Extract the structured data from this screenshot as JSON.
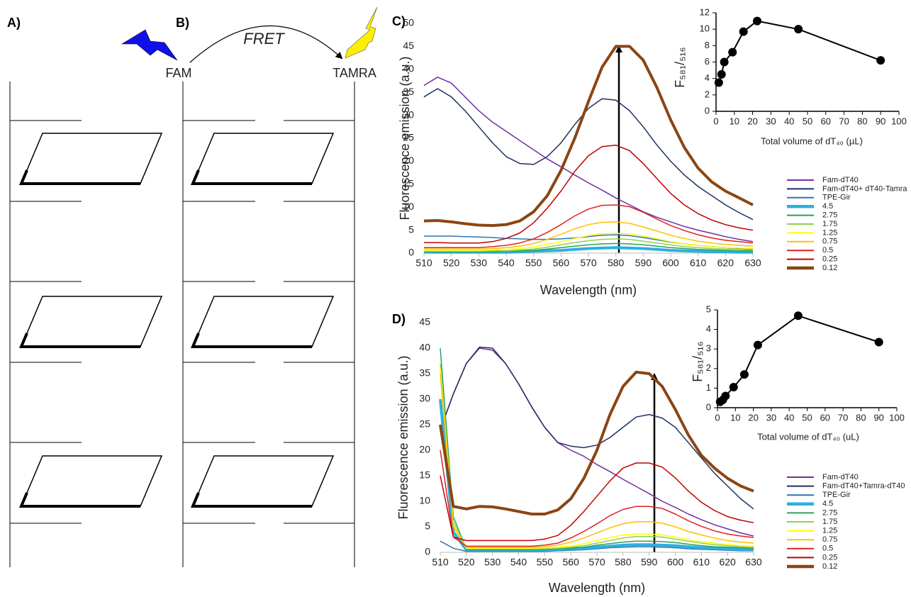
{
  "figure": {
    "panel_a": "A)",
    "panel_b": "B)",
    "panel_c": "C)",
    "panel_d": "D)",
    "fret": "FRET",
    "donor": "FAM",
    "acceptor": "TAMRA"
  },
  "chart_data": [
    {
      "type": "line",
      "xlabel": "Wavelength (nm)",
      "ylabel": "Fluorescence emission (a.u.)",
      "xlim": [
        510,
        630
      ],
      "xticks": [
        510,
        520,
        530,
        540,
        550,
        560,
        570,
        580,
        590,
        600,
        610,
        620,
        630
      ],
      "ylim": [
        0,
        50
      ],
      "yticks": [
        0,
        5,
        10,
        15,
        20,
        25,
        30,
        35,
        40,
        45,
        50
      ],
      "legend": true,
      "x": [
        510,
        515,
        520,
        525,
        530,
        535,
        540,
        545,
        550,
        555,
        560,
        565,
        570,
        575,
        580,
        585,
        590,
        595,
        600,
        605,
        610,
        615,
        620,
        625,
        630
      ],
      "series": [
        {
          "name": "Fam-dT40",
          "color": "#7030a0",
          "width": 1.5,
          "values": [
            36.5,
            38.3,
            37,
            34,
            31,
            28.5,
            26.5,
            24.5,
            22.5,
            20.5,
            18.8,
            17,
            15.3,
            13.7,
            12,
            10.5,
            9,
            7.8,
            6.8,
            5.8,
            5,
            4.3,
            3.6,
            3,
            2.5
          ]
        },
        {
          "name": "Fam-dT40+ dT40-Tamra",
          "color": "#1f2f5f",
          "width": 1.5,
          "values": [
            34,
            35.8,
            34,
            31,
            27.5,
            24,
            21,
            19.5,
            19.3,
            21,
            24,
            28,
            31.5,
            33.6,
            33.3,
            31,
            27.5,
            23.5,
            20,
            17,
            14.5,
            12.5,
            10.5,
            8.8,
            7.3
          ]
        },
        {
          "name": "TPE-Gir",
          "color": "#2e75b6",
          "width": 1.5,
          "values": [
            3.7,
            3.7,
            3.7,
            3.6,
            3.5,
            3.4,
            3.2,
            3.1,
            3.0,
            3.0,
            3.1,
            3.3,
            3.6,
            3.9,
            4.0,
            3.8,
            3.4,
            2.9,
            2.4,
            2.0,
            1.7,
            1.4,
            1.2,
            1.0,
            0.9
          ]
        },
        {
          "name": "4.5",
          "color": "#2bb0e0",
          "width": 4,
          "values": [
            0.2,
            0.2,
            0.2,
            0.2,
            0.2,
            0.2,
            0.2,
            0.3,
            0.4,
            0.5,
            0.6,
            0.8,
            1,
            1.1,
            1.2,
            1.1,
            1,
            0.8,
            0.6,
            0.5,
            0.4,
            0.3,
            0.3,
            0.2,
            0.2
          ]
        },
        {
          "name": "2.75",
          "color": "#2ca05a",
          "width": 1.5,
          "values": [
            0.3,
            0.3,
            0.3,
            0.3,
            0.3,
            0.3,
            0.4,
            0.5,
            0.6,
            0.9,
            1.2,
            1.5,
            1.8,
            2.0,
            2.1,
            2.0,
            1.8,
            1.5,
            1.2,
            1.0,
            0.8,
            0.7,
            0.6,
            0.5,
            0.5
          ]
        },
        {
          "name": "1.75",
          "color": "#92d050",
          "width": 1.5,
          "values": [
            0.4,
            0.4,
            0.4,
            0.4,
            0.4,
            0.5,
            0.5,
            0.7,
            0.9,
            1.3,
            1.8,
            2.3,
            2.7,
            3.0,
            3.1,
            3.0,
            2.6,
            2.2,
            1.8,
            1.4,
            1.2,
            1.0,
            0.9,
            0.8,
            0.7
          ]
        },
        {
          "name": "1.25",
          "color": "#ffff00",
          "width": 1.5,
          "values": [
            0.6,
            0.6,
            0.6,
            0.6,
            0.6,
            0.7,
            0.8,
            1,
            1.3,
            1.9,
            2.5,
            3.2,
            3.8,
            4.2,
            4.3,
            4.2,
            3.7,
            3.1,
            2.5,
            2.0,
            1.7,
            1.4,
            1.2,
            1.1,
            1.0
          ]
        },
        {
          "name": "0.75",
          "color": "#ffc000",
          "width": 1.5,
          "values": [
            0.9,
            0.9,
            0.9,
            0.9,
            0.9,
            1,
            1.2,
            1.5,
            2.1,
            3.0,
            4.1,
            5.3,
            6.2,
            6.7,
            6.8,
            6.5,
            5.7,
            4.8,
            3.9,
            3.2,
            2.6,
            2.2,
            1.9,
            1.7,
            1.5
          ]
        },
        {
          "name": "0.5",
          "color": "#e02020",
          "width": 1.5,
          "values": [
            1.2,
            1.2,
            1.2,
            1.2,
            1.2,
            1.4,
            1.7,
            2.2,
            3.1,
            4.5,
            6.2,
            8.1,
            9.6,
            10.4,
            10.5,
            10.1,
            8.9,
            7.4,
            6,
            4.9,
            4,
            3.3,
            2.8,
            2.5,
            2.2
          ]
        },
        {
          "name": "0.25",
          "color": "#c00000",
          "width": 1.5,
          "values": [
            2.3,
            2.3,
            2.2,
            2.2,
            2.2,
            2.5,
            3.2,
            4.4,
            6.6,
            9.8,
            13.5,
            17.8,
            21.2,
            23.2,
            23.5,
            22.3,
            19.5,
            16.2,
            13,
            10.5,
            8.6,
            7.2,
            6.2,
            5.5,
            5.0
          ]
        },
        {
          "name": "0.12",
          "color": "#8b4513",
          "width": 4,
          "values": [
            7,
            7.1,
            6.8,
            6.4,
            6.1,
            6,
            6.2,
            7,
            9,
            12.5,
            18,
            25,
            33,
            40.5,
            45,
            45,
            42,
            36,
            29,
            23,
            18.5,
            15.5,
            13.5,
            12,
            10.5
          ]
        }
      ]
    },
    {
      "type": "line",
      "markers": true,
      "xlabel": "Total volume of dT₄₀ (µL)",
      "ylabel": "F₅₈₁/₅₁₆",
      "color": "#000000",
      "xlim": [
        0,
        100
      ],
      "xticks": [
        0,
        10,
        20,
        30,
        40,
        50,
        60,
        70,
        80,
        90,
        100
      ],
      "ylim": [
        0,
        12
      ],
      "yticks": [
        0,
        2,
        4,
        6,
        8,
        10,
        12
      ],
      "x": [
        1.5,
        3,
        4.5,
        9,
        15,
        22.5,
        45,
        90
      ],
      "values": [
        3.5,
        4.5,
        6,
        7.2,
        9.7,
        11,
        10,
        6.2
      ]
    },
    {
      "type": "line",
      "xlabel": "Wavelength (nm)",
      "ylabel": "Fluorescence emission (a.u.)",
      "xlim": [
        510,
        630
      ],
      "xticks": [
        510,
        520,
        530,
        540,
        550,
        560,
        570,
        580,
        590,
        600,
        610,
        620,
        630
      ],
      "ylim": [
        0,
        45
      ],
      "yticks": [
        0,
        5,
        10,
        15,
        20,
        25,
        30,
        35,
        40,
        45
      ],
      "legend": true,
      "x": [
        510,
        515,
        520,
        525,
        530,
        535,
        540,
        545,
        550,
        555,
        560,
        565,
        570,
        575,
        580,
        585,
        590,
        595,
        600,
        605,
        610,
        615,
        620,
        625,
        630
      ],
      "series": [
        {
          "name": "Fam-dT40",
          "color": "#7030a0",
          "width": 1.5,
          "values": [
            24,
            31,
            37,
            40,
            39.6,
            37,
            33,
            28.5,
            24.5,
            21.5,
            20,
            18.8,
            17.2,
            15.8,
            14.3,
            12.9,
            11.5,
            10,
            8.8,
            7.5,
            6.4,
            5.4,
            4.6,
            3.8,
            3.2
          ]
        },
        {
          "name": "Fam-dT40+Tamra-dT40",
          "color": "#1f2f5f",
          "width": 1.5,
          "values": [
            24,
            31,
            37,
            40.2,
            40,
            37,
            33,
            28.5,
            24.5,
            21.5,
            20.8,
            20.5,
            21,
            22.5,
            24.5,
            26.5,
            27,
            26.3,
            24.5,
            21.5,
            18.5,
            15.5,
            13,
            10.5,
            8.5
          ]
        },
        {
          "name": "TPE-Gir",
          "color": "#2e75b6",
          "width": 1.5,
          "values": [
            2.2,
            0.8,
            0.2,
            0.2,
            0.2,
            0.2,
            0.2,
            0.2,
            0.2,
            0.3,
            0.4,
            0.5,
            0.7,
            0.9,
            1.0,
            1.1,
            1.1,
            1.0,
            0.9,
            0.7,
            0.6,
            0.5,
            0.4,
            0.3,
            0.3
          ]
        },
        {
          "name": "4.5",
          "color": "#2bb0e0",
          "width": 4,
          "values": [
            30,
            4,
            0.5,
            0.5,
            0.5,
            0.5,
            0.5,
            0.5,
            0.5,
            0.6,
            0.7,
            0.8,
            1.0,
            1.2,
            1.4,
            1.5,
            1.5,
            1.4,
            1.3,
            1.1,
            0.9,
            0.8,
            0.7,
            0.6,
            0.6
          ]
        },
        {
          "name": "2.75",
          "color": "#2ca05a",
          "width": 1.5,
          "values": [
            40,
            7,
            0.6,
            0.6,
            0.6,
            0.6,
            0.6,
            0.6,
            0.6,
            0.7,
            0.8,
            1.0,
            1.4,
            1.7,
            2.0,
            2.2,
            2.2,
            2.1,
            1.9,
            1.6,
            1.3,
            1.1,
            1.0,
            0.9,
            0.8
          ]
        },
        {
          "name": "1.75",
          "color": "#92d050",
          "width": 1.5,
          "values": [
            37,
            6,
            0.7,
            0.7,
            0.7,
            0.7,
            0.7,
            0.7,
            0.7,
            0.8,
            1.0,
            1.3,
            1.8,
            2.3,
            2.8,
            3.1,
            3.1,
            3.0,
            2.6,
            2.2,
            1.8,
            1.5,
            1.3,
            1.1,
            1.0
          ]
        },
        {
          "name": "1.25",
          "color": "#ffff00",
          "width": 1.5,
          "values": [
            36,
            5.5,
            0.8,
            0.8,
            0.8,
            0.8,
            0.8,
            0.8,
            0.9,
            1.0,
            1.2,
            1.7,
            2.3,
            2.9,
            3.4,
            3.6,
            3.6,
            3.4,
            3.0,
            2.5,
            2.1,
            1.8,
            1.5,
            1.3,
            1.2
          ]
        },
        {
          "name": "0.75",
          "color": "#ffc000",
          "width": 1.5,
          "values": [
            35,
            5,
            1,
            1,
            1,
            1,
            1,
            1,
            1.1,
            1.4,
            2.0,
            2.8,
            3.8,
            4.8,
            5.6,
            6.0,
            6.0,
            5.7,
            5.0,
            4.1,
            3.4,
            2.8,
            2.3,
            2.0,
            1.8
          ]
        },
        {
          "name": "0.5",
          "color": "#e02020",
          "width": 1.5,
          "values": [
            20,
            3,
            1.2,
            1.2,
            1.2,
            1.2,
            1.2,
            1.2,
            1.4,
            1.8,
            2.8,
            4.1,
            5.6,
            7.2,
            8.4,
            9.0,
            9.0,
            8.6,
            7.5,
            6.2,
            5.1,
            4.2,
            3.6,
            3.2,
            2.9
          ]
        },
        {
          "name": "0.25",
          "color": "#c00000",
          "width": 1.5,
          "values": [
            15,
            3,
            2.3,
            2.3,
            2.3,
            2.3,
            2.3,
            2.3,
            2.6,
            3.3,
            5.3,
            8,
            11,
            14,
            16.5,
            17.5,
            17.5,
            16.7,
            14.6,
            12,
            9.8,
            8.2,
            7,
            6.3,
            5.8
          ]
        },
        {
          "name": "0.12",
          "color": "#8b4513",
          "width": 4,
          "values": [
            25,
            9,
            8.5,
            9,
            8.9,
            8.5,
            8,
            7.5,
            7.5,
            8.3,
            10.5,
            14.5,
            20,
            27,
            32.5,
            35.3,
            35,
            32.5,
            28,
            23,
            19,
            16.5,
            14.5,
            13,
            12
          ]
        }
      ]
    },
    {
      "type": "line",
      "markers": true,
      "xlabel": "Total volume of dT₄₀ (uL)",
      "ylabel": "F₅₈₁/₅₁₆",
      "color": "#000000",
      "xlim": [
        0,
        100
      ],
      "xticks": [
        0,
        10,
        20,
        30,
        40,
        50,
        60,
        70,
        80,
        90,
        100
      ],
      "ylim": [
        0,
        5
      ],
      "yticks": [
        0,
        1,
        2,
        3,
        4,
        5
      ],
      "x": [
        1.5,
        3,
        4.5,
        9,
        15,
        22.5,
        45,
        90
      ],
      "values": [
        0.3,
        0.4,
        0.6,
        1.05,
        1.7,
        3.2,
        4.7,
        3.35
      ]
    }
  ]
}
